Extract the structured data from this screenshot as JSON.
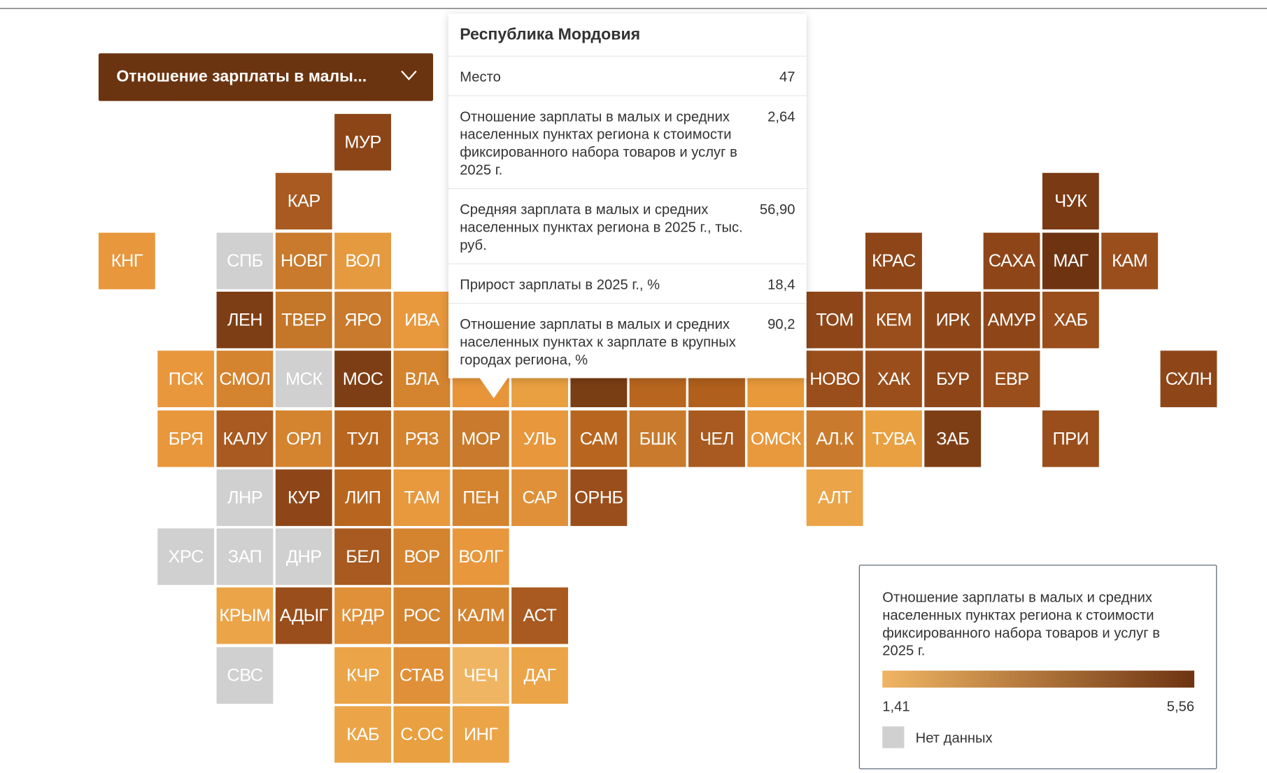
{
  "dropdown": {
    "label": "Отношение зарплаты в малы..."
  },
  "tiles": [
    {
      "label": "МУР",
      "color": "#8b4517"
    },
    {
      "label": "КАР",
      "color": "#a85a20"
    },
    {
      "label": "ЧУК",
      "color": "#7a3a14"
    },
    {
      "label": "КНГ",
      "color": "#e8973c"
    },
    {
      "label": "СПБ",
      "color": "#d0d0d0"
    },
    {
      "label": "НОВГ",
      "color": "#c97a2c"
    },
    {
      "label": "ВОЛ",
      "color": "#e59a3f"
    },
    {
      "label": "КРАС",
      "color": "#8e4619"
    },
    {
      "label": "САХА",
      "color": "#8e4619"
    },
    {
      "label": "МАГ",
      "color": "#6e3412"
    },
    {
      "label": "КАМ",
      "color": "#9a4e1b"
    },
    {
      "label": "ЛЕН",
      "color": "#7e3e15"
    },
    {
      "label": "ТВЕР",
      "color": "#c47629"
    },
    {
      "label": "ЯРО",
      "color": "#c97a2c"
    },
    {
      "label": "ИВА",
      "color": "#e8983d"
    },
    {
      "label": "ТОМ",
      "color": "#8e4619"
    },
    {
      "label": "КЕМ",
      "color": "#9a4e1b"
    },
    {
      "label": "ИРК",
      "color": "#8e4619"
    },
    {
      "label": "АМУР",
      "color": "#8e4619"
    },
    {
      "label": "ХАБ",
      "color": "#9a4e1b"
    },
    {
      "label": "ПСК",
      "color": "#e8973c"
    },
    {
      "label": "СМОЛ",
      "color": "#d4832f"
    },
    {
      "label": "МСК",
      "color": "#d0d0d0"
    },
    {
      "label": "МОС",
      "color": "#7e3e15"
    },
    {
      "label": "ВЛА",
      "color": "#d4832f"
    },
    {
      "label": null,
      "color": "#e8953a"
    },
    {
      "label": null,
      "color": "#e8a040"
    },
    {
      "label": null,
      "color": "#7a3e14"
    },
    {
      "label": null,
      "color": "#b8661f"
    },
    {
      "label": null,
      "color": "#b0601c"
    },
    {
      "label": null,
      "color": "#e89a3a"
    },
    {
      "label": "НОВО",
      "color": "#9a4e1b"
    },
    {
      "label": "ХАК",
      "color": "#9a4e1b"
    },
    {
      "label": "БУР",
      "color": "#8e4619"
    },
    {
      "label": "ЕВР",
      "color": "#9a4e1b"
    },
    {
      "label": "СХЛН",
      "color": "#8e4619"
    },
    {
      "label": "БРЯ",
      "color": "#e8973c"
    },
    {
      "label": "КАЛУ",
      "color": "#a85a20"
    },
    {
      "label": "ОРЛ",
      "color": "#d4832f"
    },
    {
      "label": "ТУЛ",
      "color": "#b8661f"
    },
    {
      "label": "РЯЗ",
      "color": "#d4832f"
    },
    {
      "label": "МОР",
      "color": "#c97a2c"
    },
    {
      "label": "УЛЬ",
      "color": "#e8973c"
    },
    {
      "label": "САМ",
      "color": "#b8661f"
    },
    {
      "label": "БШК",
      "color": "#c97a2c"
    },
    {
      "label": "ЧЕЛ",
      "color": "#a85a20"
    },
    {
      "label": "ОМСК",
      "color": "#e8983d"
    },
    {
      "label": "АЛ.К",
      "color": "#c97a2c"
    },
    {
      "label": "ТУВА",
      "color": "#e8a040"
    },
    {
      "label": "ЗАБ",
      "color": "#7e3e15"
    },
    {
      "label": "ПРИ",
      "color": "#9a4e1b"
    },
    {
      "label": "ЛНР",
      "color": "#d0d0d0"
    },
    {
      "label": "КУР",
      "color": "#8e4619"
    },
    {
      "label": "ЛИП",
      "color": "#b8661f"
    },
    {
      "label": "ТАМ",
      "color": "#e8983d"
    },
    {
      "label": "ПЕН",
      "color": "#d4832f"
    },
    {
      "label": "САР",
      "color": "#e09038"
    },
    {
      "label": "ОРНБ",
      "color": "#9a4e1b"
    },
    {
      "label": "АЛТ",
      "color": "#eba448"
    },
    {
      "label": "ХРС",
      "color": "#d0d0d0"
    },
    {
      "label": "ЗАП",
      "color": "#d0d0d0"
    },
    {
      "label": "ДНР",
      "color": "#d0d0d0"
    },
    {
      "label": "БЕЛ",
      "color": "#a85a20"
    },
    {
      "label": "ВОР",
      "color": "#d4832f"
    },
    {
      "label": "ВОЛГ",
      "color": "#e8973c"
    },
    {
      "label": "КРЫМ",
      "color": "#eba448"
    },
    {
      "label": "АДЫГ",
      "color": "#9a4e1b"
    },
    {
      "label": "КРДР",
      "color": "#e09038"
    },
    {
      "label": "РОС",
      "color": "#d4832f"
    },
    {
      "label": "КАЛМ",
      "color": "#d4832f"
    },
    {
      "label": "АСТ",
      "color": "#a85a20"
    },
    {
      "label": "СВС",
      "color": "#d0d0d0"
    },
    {
      "label": "КЧР",
      "color": "#eba448"
    },
    {
      "label": "СТАВ",
      "color": "#e09038"
    },
    {
      "label": "ЧЕЧ",
      "color": "#f0b563"
    },
    {
      "label": "ДАГ",
      "color": "#eba448"
    },
    {
      "label": "КАБ",
      "color": "#eba448"
    },
    {
      "label": "С.ОС",
      "color": "#e8a040"
    },
    {
      "label": "ИНГ",
      "color": "#eba448"
    }
  ],
  "tooltip": {
    "title": "Республика Мордовия",
    "rows": [
      {
        "label": "Место",
        "value": "47"
      },
      {
        "label": "Отношение зарплаты в малых и средних населенных пунктах региона к стоимости фиксированного набора товаров и услуг в 2025 г.",
        "value": "2,64"
      },
      {
        "label": "Средняя зарплата в малых и средних населенных пунктах региона в 2025 г., тыс. руб.",
        "value": "56,90"
      },
      {
        "label": "Прирост зарплаты в 2025 г., %",
        "value": "18,4"
      },
      {
        "label": "Отношение зарплаты в малых и средних населенных пунктах к зарплате в крупных городах региона, %",
        "value": "90,2"
      }
    ]
  },
  "legend": {
    "title": "Отношение зарплаты в малых и средних населенных пунктах региона к стоимости фиксированного набора товаров и услуг в 2025 г.",
    "min": {
      "value": 1.41,
      "label": "1,41"
    },
    "max": {
      "value": 5.56,
      "label": "5,56"
    },
    "colors": [
      "#f0b563",
      "#6e3412"
    ],
    "no_data": {
      "label": "Нет данных",
      "color": "#d0d0d0"
    }
  }
}
